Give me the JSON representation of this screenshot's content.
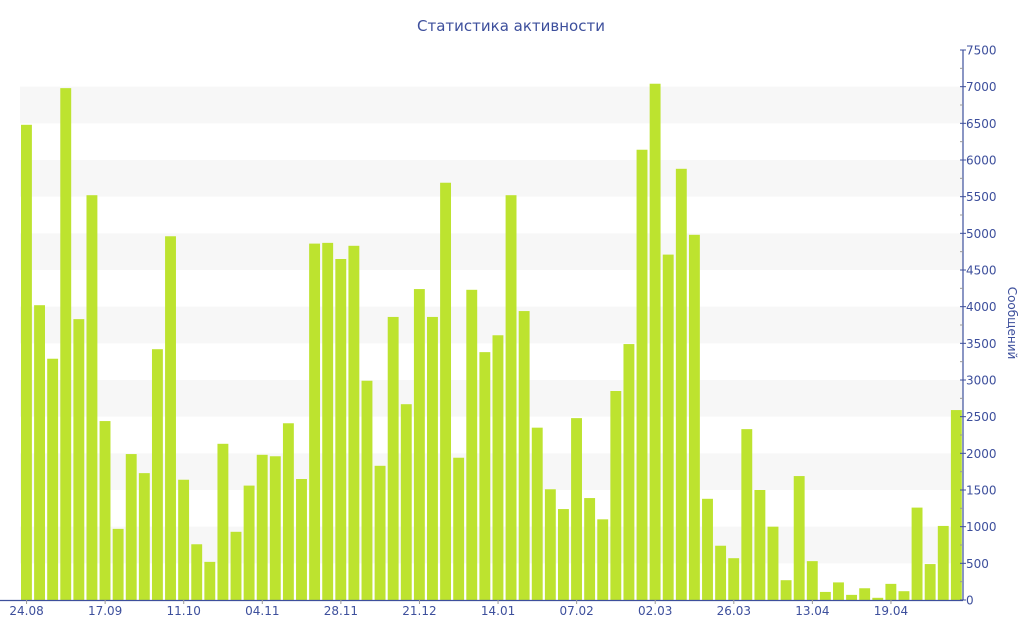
{
  "chart_data": {
    "type": "bar",
    "title": "Статистика активности",
    "xlabel": "",
    "ylabel": "Сообщений",
    "ylim": [
      0,
      7500
    ],
    "y_ticks": [
      0,
      500,
      1000,
      1500,
      2000,
      2500,
      3000,
      3500,
      4000,
      4500,
      5000,
      5500,
      6000,
      6500,
      7000,
      7500
    ],
    "y_axis_position": "right",
    "grid": "alternating horizontal bands",
    "x_tick_labels": [
      {
        "index": 0,
        "label": "24.08"
      },
      {
        "index": 6,
        "label": "17.09"
      },
      {
        "index": 12,
        "label": "11.10"
      },
      {
        "index": 18,
        "label": "04.11"
      },
      {
        "index": 24,
        "label": "28.11"
      },
      {
        "index": 30,
        "label": "21.12"
      },
      {
        "index": 36,
        "label": "14.01"
      },
      {
        "index": 42,
        "label": "07.02"
      },
      {
        "index": 48,
        "label": "02.03"
      },
      {
        "index": 54,
        "label": "26.03"
      },
      {
        "index": 60,
        "label": "13.04"
      },
      {
        "index": 66,
        "label": "19.04"
      }
    ],
    "values": [
      6480,
      4020,
      3290,
      6980,
      3830,
      5520,
      2440,
      970,
      1990,
      1730,
      3420,
      4960,
      1640,
      760,
      520,
      2130,
      930,
      1560,
      1980,
      1960,
      2410,
      1650,
      4860,
      4870,
      4650,
      4830,
      2990,
      1830,
      3860,
      2670,
      4240,
      3860,
      5690,
      1940,
      4230,
      3380,
      3610,
      5520,
      3940,
      2350,
      1510,
      1240,
      2480,
      1390,
      1100,
      2850,
      3490,
      6140,
      7040,
      4710,
      5880,
      4980,
      1380,
      740,
      570,
      2330,
      1500,
      1000,
      270,
      1690,
      530,
      110,
      240,
      70,
      160,
      30,
      220,
      120,
      1260,
      490,
      1010,
      2590
    ],
    "colors": {
      "bar": "#bde32f",
      "axis": "#3d4f9c",
      "band": "#f7f7f7"
    }
  }
}
